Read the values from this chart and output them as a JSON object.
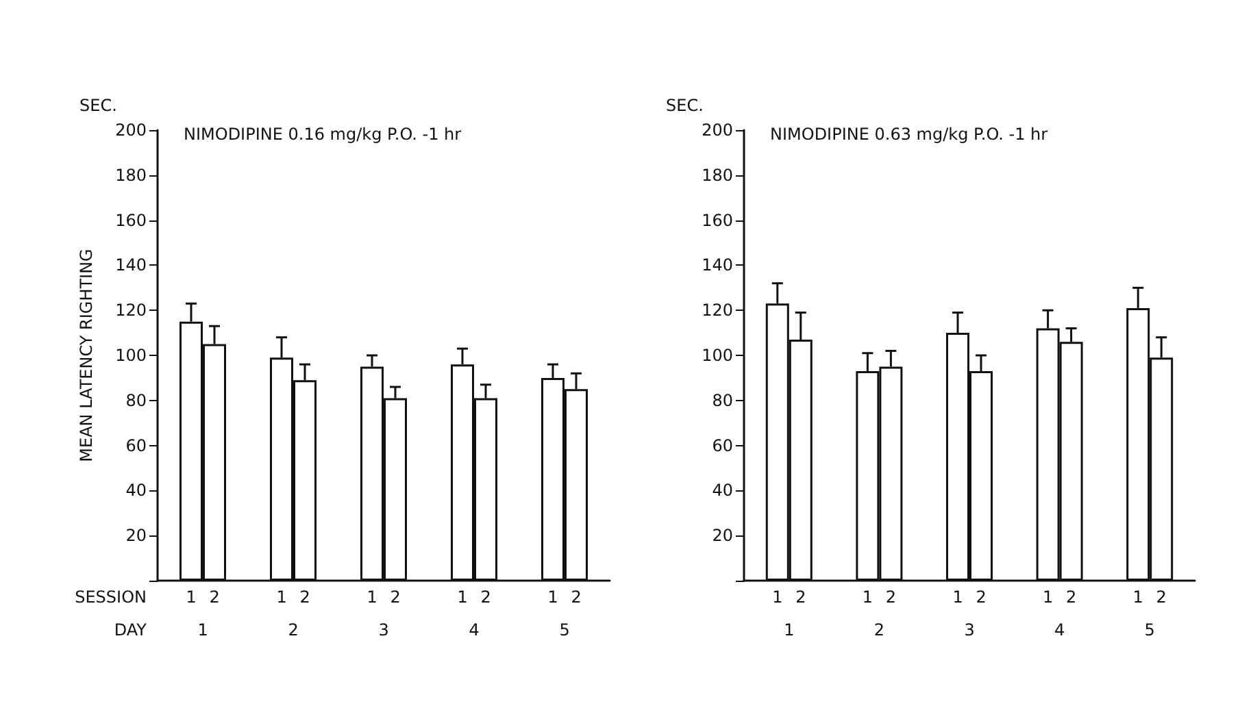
{
  "chart_data": [
    {
      "type": "bar",
      "title": "NIMODIPINE 0.16 mg/kg P.O. -1 hr",
      "ylabel": "MEAN LATENCY RIGHTING",
      "xlabel": "DAY",
      "legend_title": "SESSION",
      "annotations": [
        "SEC."
      ],
      "categories": [
        "1",
        "2",
        "3",
        "4",
        "5"
      ],
      "series": [
        {
          "name": "1",
          "color": "#ffffff",
          "values": [
            115,
            99,
            95,
            96,
            90
          ],
          "errors": [
            [
              115,
              123
            ],
            [
              99,
              108
            ],
            [
              95,
              100
            ],
            [
              96,
              103
            ],
            [
              90,
              96
            ]
          ]
        },
        {
          "name": "2",
          "color": "#ffffff",
          "values": [
            105,
            89,
            81,
            81,
            85
          ],
          "errors": [
            [
              105,
              113
            ],
            [
              89,
              96
            ],
            [
              81,
              86
            ],
            [
              81,
              87
            ],
            [
              85,
              92
            ]
          ]
        }
      ],
      "ylim": [
        0,
        200
      ],
      "yticks": [
        {
          "value": 0,
          "label": null
        },
        20,
        40,
        60,
        80,
        100,
        120,
        140,
        160,
        180,
        200
      ],
      "grid": false,
      "legend": false
    },
    {
      "type": "bar",
      "title": "NIMODIPINE 0.63 mg/kg P.O. -1 hr",
      "annotations": [
        "SEC."
      ],
      "categories": [
        "1",
        "2",
        "3",
        "4",
        "5"
      ],
      "series": [
        {
          "name": "1",
          "color": "#ffffff",
          "values": [
            123,
            93,
            110,
            112,
            121
          ],
          "errors": [
            [
              123,
              132
            ],
            [
              93,
              101
            ],
            [
              110,
              119
            ],
            [
              112,
              120
            ],
            [
              121,
              130
            ]
          ]
        },
        {
          "name": "2",
          "color": "#ffffff",
          "values": [
            107,
            95,
            93,
            106,
            99
          ],
          "errors": [
            [
              107,
              119
            ],
            [
              95,
              102
            ],
            [
              93,
              100
            ],
            [
              106,
              112
            ],
            [
              99,
              108
            ]
          ]
        }
      ],
      "ylim": [
        0,
        200
      ],
      "yticks": [
        {
          "value": 0,
          "label": null
        },
        20,
        40,
        60,
        80,
        100,
        120,
        140,
        160,
        180,
        200
      ],
      "grid": false,
      "legend": false
    }
  ]
}
